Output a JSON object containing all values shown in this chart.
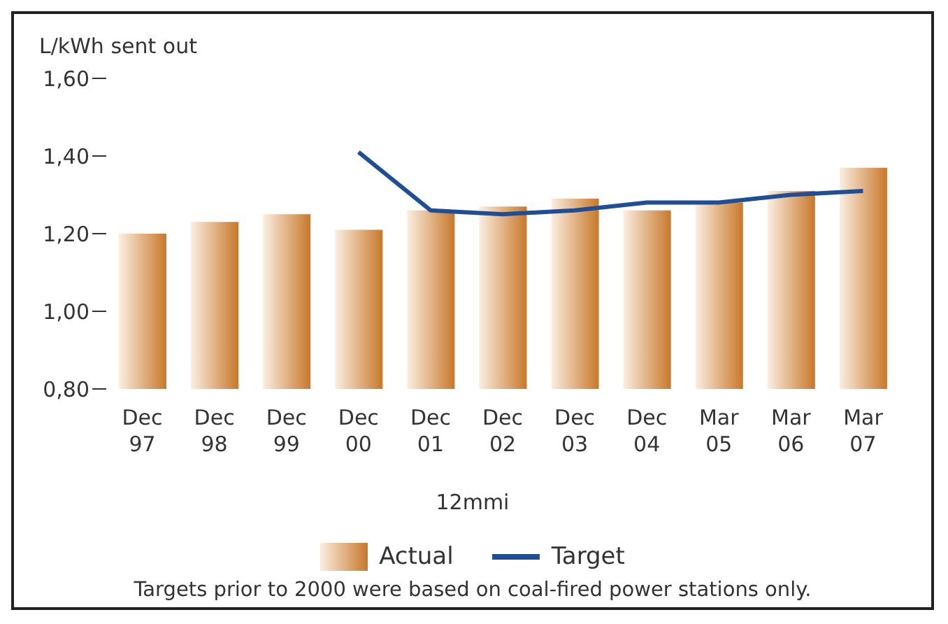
{
  "chart_data": {
    "type": "bar",
    "ylabel": "L/kWh sent out",
    "xlabel": "12mmi",
    "categories": [
      "Dec\n97",
      "Dec\n98",
      "Dec\n99",
      "Dec\n00",
      "Dec\n01",
      "Dec\n02",
      "Dec\n03",
      "Dec\n04",
      "Mar\n05",
      "Mar\n06",
      "Mar\n07"
    ],
    "series": [
      {
        "name": "Actual",
        "color": "#c8782a",
        "values": [
          1.2,
          1.23,
          1.25,
          1.21,
          1.26,
          1.27,
          1.29,
          1.26,
          1.28,
          1.31,
          1.37
        ]
      },
      {
        "name": "Target",
        "type": "line",
        "color": "#1f4e96",
        "values": [
          null,
          null,
          null,
          1.41,
          1.26,
          1.25,
          1.26,
          1.28,
          1.28,
          1.3,
          1.31
        ]
      }
    ],
    "ylim": [
      0.8,
      1.6
    ],
    "yticks": [
      {
        "value": 0.8,
        "label": "0,80"
      },
      {
        "value": 1.0,
        "label": "1,00"
      },
      {
        "value": 1.2,
        "label": "1,20"
      },
      {
        "value": 1.4,
        "label": "1,40"
      },
      {
        "value": 1.6,
        "label": "1,60"
      }
    ],
    "grid": false,
    "legend": "bottom",
    "marker": "none",
    "annotations": [
      "Targets prior to 2000 were based on coal-fired power stations only."
    ]
  }
}
